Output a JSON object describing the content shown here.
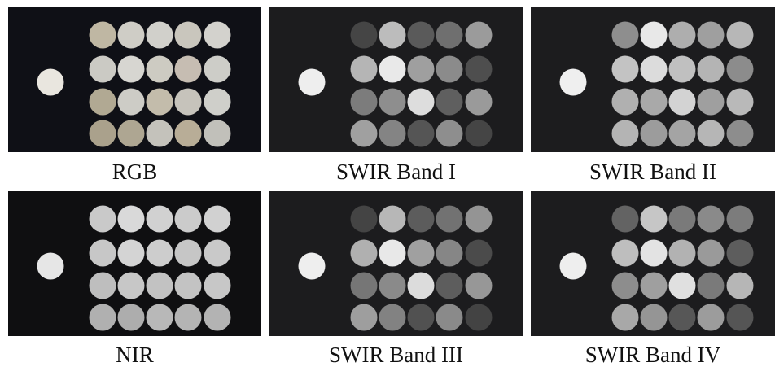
{
  "figure": {
    "panels": [
      {
        "caption": "RGB",
        "background": "#0f1016",
        "reference_disc": "#e9e6df",
        "grid": [
          [
            "#bfb7a3",
            "#cfcdc6",
            "#d1d0cb",
            "#c9c6bd",
            "#d3d2cd"
          ],
          [
            "#cbcac4",
            "#d7d6d1",
            "#cdcbc2",
            "#c6bdb2",
            "#cdcdc8"
          ],
          [
            "#b1a993",
            "#cdccc6",
            "#c3bcab",
            "#c6c3bb",
            "#cfcfca"
          ],
          [
            "#aaa18c",
            "#aea692",
            "#c4c2bb",
            "#b8ad97",
            "#c1c0ba"
          ]
        ]
      },
      {
        "caption": "SWIR Band I",
        "background": "#1c1c1e",
        "reference_disc": "#eeeeee",
        "grid": [
          [
            "#454545",
            "#bcbcbc",
            "#5a5a5a",
            "#6f6f6f",
            "#9b9b9b"
          ],
          [
            "#b5b5b5",
            "#e9e9e9",
            "#9f9f9f",
            "#8b8b8b",
            "#4e4e4e"
          ],
          [
            "#7c7c7c",
            "#8e8e8e",
            "#dddddd",
            "#5f5f5f",
            "#9a9a9a"
          ],
          [
            "#a0a0a0",
            "#848484",
            "#555555",
            "#8e8e8e",
            "#454545"
          ]
        ]
      },
      {
        "caption": "SWIR Band II",
        "background": "#1c1c1e",
        "reference_disc": "#efefef",
        "grid": [
          [
            "#8e8e8e",
            "#e8e8e8",
            "#aeaeae",
            "#9f9f9f",
            "#b7b7b7"
          ],
          [
            "#c3c3c3",
            "#dcdcdc",
            "#c0c0c0",
            "#b4b4b4",
            "#8c8c8c"
          ],
          [
            "#b0b0b0",
            "#a9a9a9",
            "#d3d3d3",
            "#9f9f9f",
            "#b9b9b9"
          ],
          [
            "#b4b4b4",
            "#9c9c9c",
            "#a4a4a4",
            "#b6b6b6",
            "#8d8d8d"
          ]
        ]
      },
      {
        "caption": "NIR",
        "background": "#0f0f11",
        "reference_disc": "#e6e6e6",
        "grid": [
          [
            "#c9c9c9",
            "#d9d9d9",
            "#d1d1d1",
            "#cbcbcb",
            "#d1d1d1"
          ],
          [
            "#c7c7c7",
            "#d4d4d4",
            "#cdcdcd",
            "#c6c6c6",
            "#c9c9c9"
          ],
          [
            "#bebebe",
            "#c7c7c7",
            "#c2c2c2",
            "#c3c3c3",
            "#c7c7c7"
          ],
          [
            "#b0b0b0",
            "#adadad",
            "#b8b8b8",
            "#b4b4b4",
            "#b3b3b3"
          ]
        ]
      },
      {
        "caption": "SWIR Band III",
        "background": "#1c1c1e",
        "reference_disc": "#eeeeee",
        "grid": [
          [
            "#444444",
            "#b7b7b7",
            "#5c5c5c",
            "#727272",
            "#949494"
          ],
          [
            "#b0b0b0",
            "#e8e8e8",
            "#a0a0a0",
            "#868686",
            "#4b4b4b"
          ],
          [
            "#767676",
            "#8a8a8a",
            "#dcdcdc",
            "#5d5d5d",
            "#979797"
          ],
          [
            "#9e9e9e",
            "#828282",
            "#515151",
            "#8a8a8a",
            "#434343"
          ]
        ]
      },
      {
        "caption": "SWIR Band IV",
        "background": "#1c1c1e",
        "reference_disc": "#eeeeee",
        "grid": [
          [
            "#636363",
            "#c6c6c6",
            "#7a7a7a",
            "#8a8a8a",
            "#7c7c7c"
          ],
          [
            "#bebebe",
            "#e3e3e3",
            "#b2b2b2",
            "#9a9a9a",
            "#5d5d5d"
          ],
          [
            "#8d8d8d",
            "#9f9f9f",
            "#e0e0e0",
            "#7a7a7a",
            "#b6b6b6"
          ],
          [
            "#a8a8a8",
            "#959595",
            "#575757",
            "#9c9c9c",
            "#555555"
          ]
        ]
      }
    ]
  }
}
